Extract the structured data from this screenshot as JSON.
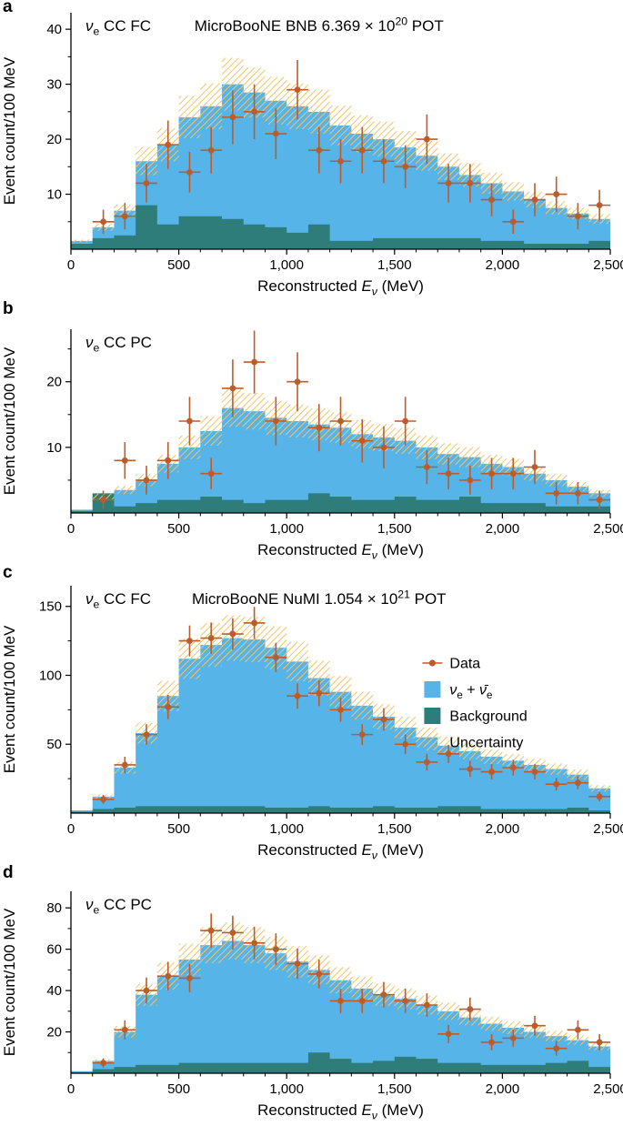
{
  "colors": {
    "signal": "#56b4e9",
    "background": "#2e7d7a",
    "data": "#bf5b28",
    "uncertainty": "#f1c469",
    "axis": "#000000"
  },
  "legend": {
    "items": [
      {
        "marker": "data-point",
        "label": [
          {
            "t": "Data"
          }
        ]
      },
      {
        "marker": "signal-swatch",
        "label": [
          {
            "t": "ν",
            "italic": true
          },
          {
            "t": "e",
            "sub": true
          },
          {
            "t": " + "
          },
          {
            "t": "ν̄",
            "italic": true
          },
          {
            "t": "e",
            "sub": true
          }
        ]
      },
      {
        "marker": "background-swatch",
        "label": [
          {
            "t": "Background"
          }
        ]
      },
      {
        "marker": "uncertainty-swatch",
        "label": [
          {
            "t": "Uncertainty"
          }
        ]
      }
    ]
  },
  "chart_data": [
    {
      "type": "bar",
      "panel_label": "a",
      "annotation": [
        {
          "t": "ν",
          "italic": true
        },
        {
          "t": "e",
          "sub": true
        },
        {
          "t": " CC FC"
        }
      ],
      "title": [
        {
          "t": "MicroBooNE BNB 6.369 × 10"
        },
        {
          "t": "20",
          "sup": true
        },
        {
          "t": " POT"
        }
      ],
      "ylabel": "Event count/100 MeV",
      "xlabel": [
        {
          "t": "Reconstructed "
        },
        {
          "t": "E",
          "italic": true
        },
        {
          "t": "ν",
          "sub": true,
          "italic": true
        },
        {
          "t": " (MeV)"
        }
      ],
      "xlim": [
        0,
        2500
      ],
      "ylim": [
        0,
        43
      ],
      "yticks": [
        10,
        20,
        30,
        40
      ],
      "xticks": [
        0,
        500,
        1000,
        1500,
        2000,
        2500
      ],
      "xtick_labels": [
        "0",
        "500",
        "1,000",
        "1,500",
        "2,000",
        "2,500"
      ],
      "bin_width": 100,
      "total": [
        1.5,
        4,
        7,
        16,
        19,
        24,
        26,
        30,
        28.5,
        27,
        26,
        25,
        22.5,
        21,
        20,
        18.5,
        17,
        15,
        13.5,
        12,
        10.5,
        9,
        7.5,
        6.5,
        5.5
      ],
      "background": [
        1,
        2,
        2.5,
        8,
        4.5,
        6,
        6,
        5.5,
        4.5,
        4,
        3,
        4.5,
        1.5,
        1.5,
        2,
        2,
        2,
        2,
        2,
        1.5,
        1.5,
        1,
        1,
        1,
        1.5
      ],
      "uncertainty_frac": 0.16,
      "data_x": [
        150,
        250,
        350,
        450,
        550,
        650,
        750,
        850,
        950,
        1050,
        1150,
        1250,
        1350,
        1450,
        1550,
        1650,
        1750,
        1850,
        1950,
        2050,
        2150,
        2250,
        2350,
        2450
      ],
      "data_y": [
        5,
        6,
        12,
        19,
        14,
        18,
        24,
        25,
        21,
        29,
        18,
        16,
        18,
        16,
        15,
        20,
        12,
        12,
        9,
        5,
        9,
        10,
        6,
        8
      ],
      "data_yerr": [
        2.2,
        2.4,
        3.5,
        4.4,
        3.7,
        4.2,
        4.9,
        5.0,
        4.6,
        5.4,
        4.2,
        4.0,
        4.2,
        4.0,
        3.9,
        4.5,
        3.5,
        3.5,
        3.0,
        2.2,
        3.0,
        3.2,
        2.4,
        2.8
      ],
      "show_legend": false
    },
    {
      "type": "bar",
      "panel_label": "b",
      "annotation": [
        {
          "t": "ν",
          "italic": true
        },
        {
          "t": "e",
          "sub": true
        },
        {
          "t": " CC PC"
        }
      ],
      "title": null,
      "ylabel": "Event count/100 MeV",
      "xlabel": [
        {
          "t": "Reconstructed "
        },
        {
          "t": "E",
          "italic": true
        },
        {
          "t": "ν",
          "sub": true,
          "italic": true
        },
        {
          "t": " (MeV)"
        }
      ],
      "xlim": [
        0,
        2500
      ],
      "ylim": [
        0,
        28
      ],
      "yticks": [
        10,
        20
      ],
      "xticks": [
        0,
        500,
        1000,
        1500,
        2000,
        2500
      ],
      "xtick_labels": [
        "0",
        "500",
        "1,000",
        "1,500",
        "2,000",
        "2,500"
      ],
      "bin_width": 100,
      "total": [
        0.5,
        2.5,
        3.5,
        5,
        7.5,
        10,
        12.5,
        16,
        15.5,
        14.5,
        14,
        13.5,
        13,
        12,
        11.5,
        11,
        10,
        9,
        8.5,
        7.5,
        7,
        6,
        5,
        4,
        3
      ],
      "background": [
        0.3,
        3,
        1,
        1.5,
        2,
        2,
        2.5,
        2,
        1.5,
        2,
        2,
        3,
        2.5,
        2,
        2,
        2.5,
        2,
        2,
        2.5,
        1.5,
        1.5,
        1.5,
        1,
        1,
        1
      ],
      "uncertainty_frac": 0.18,
      "data_x": [
        150,
        250,
        350,
        450,
        550,
        650,
        750,
        850,
        950,
        1050,
        1150,
        1250,
        1350,
        1450,
        1550,
        1650,
        1750,
        1850,
        1950,
        2050,
        2150,
        2250,
        2350,
        2450
      ],
      "data_y": [
        2,
        8,
        5,
        8,
        14,
        6,
        19,
        23,
        14,
        20,
        13,
        14,
        11,
        10,
        14,
        7,
        6,
        5,
        6,
        6,
        7,
        3,
        3,
        2
      ],
      "data_yerr": [
        1.4,
        2.8,
        2.2,
        2.8,
        3.7,
        2.4,
        4.4,
        4.8,
        3.7,
        4.5,
        3.6,
        3.7,
        3.3,
        3.2,
        3.7,
        2.6,
        2.4,
        2.2,
        2.4,
        2.4,
        2.6,
        1.7,
        1.7,
        1.4
      ],
      "show_legend": false
    },
    {
      "type": "bar",
      "panel_label": "c",
      "annotation": [
        {
          "t": "ν",
          "italic": true
        },
        {
          "t": "e",
          "sub": true
        },
        {
          "t": " CC FC"
        }
      ],
      "title": [
        {
          "t": "MicroBooNE NuMI 1.054 × 10"
        },
        {
          "t": "21",
          "sup": true
        },
        {
          "t": " POT"
        }
      ],
      "ylabel": "Event count/100 MeV",
      "xlabel": [
        {
          "t": "Reconstructed "
        },
        {
          "t": "E",
          "italic": true
        },
        {
          "t": "ν",
          "sub": true,
          "italic": true
        },
        {
          "t": " (MeV)"
        }
      ],
      "xlim": [
        0,
        2500
      ],
      "ylim": [
        0,
        165
      ],
      "yticks": [
        50,
        100,
        150
      ],
      "xticks": [
        0,
        500,
        1000,
        1500,
        2000,
        2500
      ],
      "xtick_labels": [
        "0",
        "500",
        "1,000",
        "1,500",
        "2,000",
        "2,500"
      ],
      "bin_width": 100,
      "total": [
        2,
        12,
        33,
        58,
        85,
        112,
        122,
        127,
        126,
        120,
        110,
        98,
        88,
        78,
        70,
        62,
        55,
        49,
        45,
        41,
        38,
        35,
        32,
        28,
        18
      ],
      "background": [
        1,
        3,
        4,
        5,
        5,
        5,
        5,
        5,
        5,
        4,
        4,
        5,
        4,
        4,
        5,
        4,
        4,
        5,
        5,
        3,
        3,
        3,
        3,
        4,
        2
      ],
      "uncertainty_frac": 0.13,
      "data_x": [
        150,
        250,
        350,
        450,
        550,
        650,
        750,
        850,
        950,
        1050,
        1150,
        1250,
        1350,
        1450,
        1550,
        1650,
        1750,
        1850,
        1950,
        2050,
        2150,
        2250,
        2350,
        2450
      ],
      "data_y": [
        10,
        35,
        57,
        77,
        125,
        127,
        130,
        138,
        113,
        85,
        87,
        75,
        57,
        68,
        50,
        37,
        43,
        32,
        30,
        33,
        30,
        21,
        22,
        12
      ],
      "data_yerr": [
        3.2,
        5.9,
        7.5,
        8.8,
        11.2,
        11.3,
        11.4,
        11.7,
        10.6,
        9.2,
        9.3,
        8.7,
        7.5,
        8.2,
        7.1,
        6.1,
        6.6,
        5.7,
        5.5,
        5.7,
        5.5,
        4.6,
        4.7,
        3.5
      ],
      "show_legend": true
    },
    {
      "type": "bar",
      "panel_label": "d",
      "annotation": [
        {
          "t": "ν",
          "italic": true
        },
        {
          "t": "e",
          "sub": true
        },
        {
          "t": " CC PC"
        }
      ],
      "title": null,
      "ylabel": "Event count/100 MeV",
      "xlabel": [
        {
          "t": "Reconstructed "
        },
        {
          "t": "E",
          "italic": true
        },
        {
          "t": "ν",
          "sub": true,
          "italic": true
        },
        {
          "t": " (MeV)"
        }
      ],
      "xlim": [
        0,
        2500
      ],
      "ylim": [
        0,
        88
      ],
      "yticks": [
        20,
        40,
        60,
        80
      ],
      "xticks": [
        0,
        500,
        1000,
        1500,
        2000,
        2500
      ],
      "xtick_labels": [
        "0",
        "500",
        "1,000",
        "1,500",
        "2,000",
        "2,500"
      ],
      "bin_width": 100,
      "total": [
        1,
        6,
        20,
        38,
        47,
        55,
        62,
        64,
        62,
        58,
        54,
        50,
        45,
        41,
        38,
        36,
        33,
        30,
        27,
        24,
        22,
        20,
        18,
        16,
        13
      ],
      "background": [
        0.5,
        2,
        3,
        4,
        4,
        5,
        5,
        5,
        5,
        5,
        5,
        10,
        7,
        5,
        6,
        8,
        7,
        5,
        5,
        4,
        4,
        4,
        5,
        6,
        3
      ],
      "uncertainty_frac": 0.14,
      "data_x": [
        150,
        250,
        350,
        450,
        550,
        650,
        750,
        850,
        950,
        1050,
        1150,
        1250,
        1350,
        1450,
        1550,
        1650,
        1750,
        1850,
        1950,
        2050,
        2150,
        2250,
        2350,
        2450
      ],
      "data_y": [
        5,
        21,
        40,
        47,
        46,
        69,
        68,
        63,
        60,
        53,
        48,
        35,
        35,
        38,
        35,
        33,
        19,
        31,
        15,
        17,
        23,
        12,
        21,
        15
      ],
      "data_yerr": [
        2.2,
        4.6,
        6.3,
        6.9,
        6.8,
        8.3,
        8.2,
        7.9,
        7.7,
        7.3,
        6.9,
        5.9,
        5.9,
        6.2,
        5.9,
        5.7,
        4.4,
        5.6,
        3.9,
        4.1,
        4.8,
        3.5,
        4.6,
        3.9
      ],
      "show_legend": false
    }
  ]
}
